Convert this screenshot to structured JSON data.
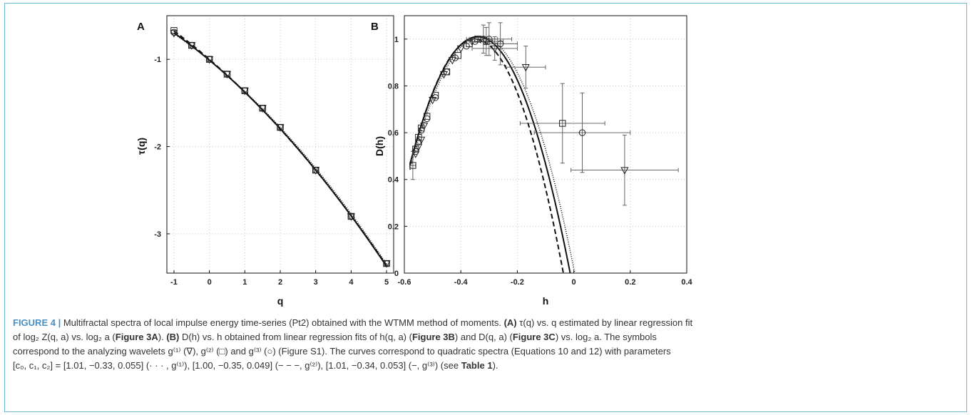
{
  "chart_data": [
    {
      "type": "line",
      "panel_label": "A",
      "xlabel": "q",
      "ylabel": "τ(q)",
      "xlim": [
        -1.2,
        5.2
      ],
      "ylim": [
        -3.45,
        -0.5
      ],
      "xticks": [
        "-1",
        "0",
        "1",
        "2",
        "3",
        "4",
        "5"
      ],
      "yticks": [
        "-1",
        "-2",
        "-3"
      ],
      "grid": true,
      "series": [
        {
          "name": "g(1)",
          "marker": "triangle-down",
          "x": [
            -1,
            -0.5,
            0,
            0.5,
            1,
            1.5,
            2,
            3,
            4,
            5
          ],
          "y": [
            -0.7,
            -0.84,
            -1.0,
            -1.17,
            -1.36,
            -1.56,
            -1.78,
            -2.27,
            -2.8,
            -3.34
          ]
        },
        {
          "name": "g(2)",
          "marker": "square",
          "x": [
            -1,
            -0.5,
            0,
            0.5,
            1,
            1.5,
            2,
            3,
            4,
            5
          ],
          "y": [
            -0.67,
            -0.84,
            -1.0,
            -1.17,
            -1.36,
            -1.56,
            -1.78,
            -2.27,
            -2.8,
            -3.34
          ]
        },
        {
          "name": "g(3)",
          "marker": "circle",
          "x": [
            -1,
            -0.5,
            0,
            0.5,
            1,
            1.5,
            2,
            3,
            4,
            5
          ],
          "y": [
            -0.69,
            -0.84,
            -1.0,
            -1.17,
            -1.36,
            -1.56,
            -1.78,
            -2.27,
            -2.8,
            -3.34
          ]
        }
      ],
      "curves": [
        {
          "name": "g(1)",
          "style": "dotted",
          "c": [
            1.01,
            -0.33,
            0.055
          ]
        },
        {
          "name": "g(2)",
          "style": "dashed",
          "c": [
            1.0,
            -0.35,
            0.049
          ]
        },
        {
          "name": "g(3)",
          "style": "solid",
          "c": [
            1.01,
            -0.34,
            0.053
          ]
        }
      ]
    },
    {
      "type": "scatter",
      "panel_label": "B",
      "xlabel": "h",
      "ylabel": "D(h)",
      "xlim": [
        -0.6,
        0.4
      ],
      "ylim": [
        0,
        1.1
      ],
      "xticks": [
        "-0.6",
        "-0.4",
        "-0.2",
        "0",
        "0.2",
        "0.4"
      ],
      "yticks": [
        "0",
        "0.2",
        "0.4",
        "0.6",
        "0.8",
        "1"
      ],
      "grid": true,
      "series": [
        {
          "name": "g(1)",
          "marker": "triangle-down",
          "x": [
            -0.56,
            -0.55,
            -0.54,
            -0.53,
            -0.5,
            -0.46,
            -0.43,
            -0.4,
            -0.36,
            -0.33,
            -0.31,
            -0.28,
            -0.17,
            0.18
          ],
          "y": [
            0.51,
            0.54,
            0.57,
            0.63,
            0.74,
            0.85,
            0.91,
            0.96,
            0.99,
            1.0,
            0.99,
            0.96,
            0.88,
            0.44
          ],
          "xerr": [
            0,
            0,
            0,
            0,
            0,
            0,
            0,
            0,
            0,
            0,
            0.05,
            0.08,
            0.07,
            0.19
          ],
          "yerr": [
            0,
            0,
            0,
            0,
            0,
            0,
            0,
            0,
            0,
            0,
            0,
            0.05,
            0.09,
            0.15
          ]
        },
        {
          "name": "g(2)",
          "marker": "square",
          "x": [
            -0.57,
            -0.56,
            -0.55,
            -0.54,
            -0.52,
            -0.49,
            -0.45,
            -0.41,
            -0.37,
            -0.34,
            -0.31,
            -0.04
          ],
          "y": [
            0.46,
            0.53,
            0.58,
            0.62,
            0.67,
            0.76,
            0.86,
            0.93,
            0.98,
            1.0,
            0.99,
            0.64
          ],
          "xerr": [
            0.01,
            0,
            0,
            0,
            0,
            0,
            0,
            0,
            0,
            0,
            0.06,
            0.15
          ],
          "yerr": [
            0.06,
            0,
            0,
            0,
            0,
            0,
            0,
            0,
            0,
            0,
            0.06,
            0.17
          ]
        },
        {
          "name": "g(3)",
          "marker": "circle",
          "x": [
            -0.56,
            -0.55,
            -0.54,
            -0.52,
            -0.49,
            -0.45,
            -0.42,
            -0.38,
            -0.35,
            -0.32,
            -0.3,
            -0.26,
            0.03
          ],
          "y": [
            0.52,
            0.56,
            0.61,
            0.66,
            0.75,
            0.86,
            0.92,
            0.97,
            0.99,
            1.0,
            1.0,
            0.98,
            0.6
          ],
          "xerr": [
            0,
            0,
            0,
            0,
            0,
            0,
            0,
            0,
            0,
            0.05,
            0.08,
            0.06,
            0.17
          ],
          "yerr": [
            0,
            0,
            0,
            0,
            0,
            0,
            0,
            0,
            0,
            0.06,
            0.07,
            0.09,
            0.17
          ]
        }
      ],
      "curves": [
        {
          "name": "g(1)",
          "style": "dotted",
          "c": [
            1.01,
            -0.33,
            0.055
          ]
        },
        {
          "name": "g(2)",
          "style": "dashed",
          "c": [
            1.0,
            -0.35,
            0.049
          ]
        },
        {
          "name": "g(3)",
          "style": "solid",
          "c": [
            1.01,
            -0.34,
            0.053
          ]
        }
      ]
    }
  ],
  "caption": {
    "figure_id": "FIGURE 4 |",
    "line1": "Multifractal spectra of local impulse energy time-series (Pt2) obtained with the WTMM method of moments.",
    "a_label": "(A)",
    "a_text": "τ(q) vs. q estimated by linear regression fit",
    "line2a": "of log₂ Z(q, a) vs. log₂ a (",
    "fig3a": "Figure 3A",
    "line2b": ").",
    "b_label": "(B)",
    "b_text": "D(h) vs. h obtained from linear regression fits of h(q, a) (",
    "fig3b": "Figure 3B",
    "b_mid": ") and D(q, a) (",
    "fig3c": "Figure 3C",
    "b_end": ") vs. log₂ a. The symbols",
    "line3": "correspond to the analyzing wavelets g⁽¹⁾ (∇), g⁽²⁾ (□) and g⁽³⁾ (○) (Figure S1). The curves correspond to quadratic spectra (Equations 10 and 12) with parameters",
    "line4": "[c₀, c₁, c₂] = [1.01, −0.33, 0.055] (· · · , g⁽¹⁾), [1.00, −0.35, 0.049] (− − −, g⁽²⁾), [1.01, −0.34, 0.053] (−, g⁽³⁾) (see",
    "table_ref": "Table 1",
    "line4_end": ")."
  }
}
